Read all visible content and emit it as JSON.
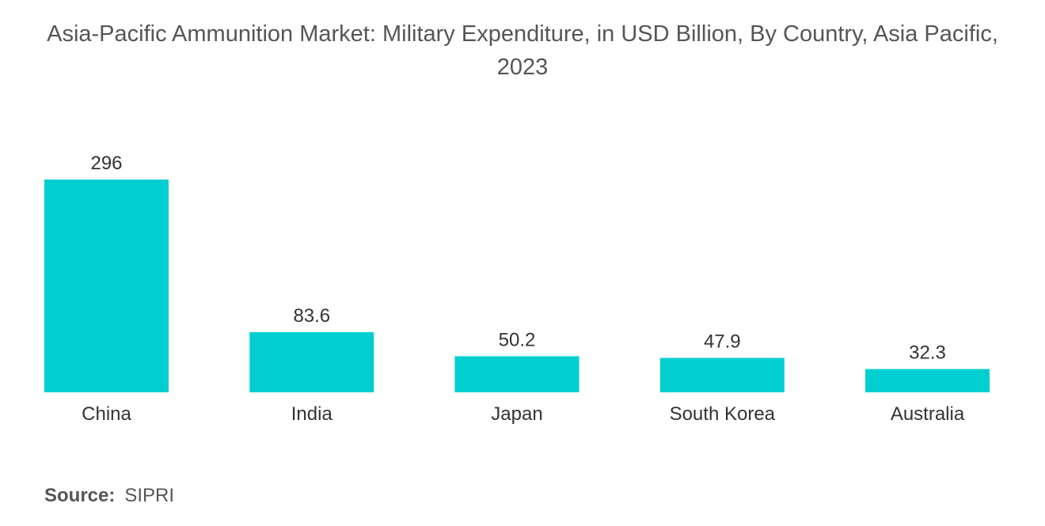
{
  "chart_data": {
    "type": "bar",
    "title": "Asia-Pacific Ammunition Market: Military Expenditure, in USD Billion, By Country, Asia Pacific, 2023",
    "categories": [
      "China",
      "India",
      "Japan",
      "South Korea",
      "Australia"
    ],
    "values": [
      296,
      83.6,
      50.2,
      47.9,
      32.3
    ],
    "value_labels": [
      "296",
      "83.6",
      "50.2",
      "47.9",
      "32.3"
    ],
    "xlabel": "",
    "ylabel": "",
    "ylim": [
      0,
      296
    ],
    "grid": false,
    "legend": "none",
    "bar_color": "#00CED1"
  },
  "source": {
    "label": "Source:",
    "value": "SIPRI"
  }
}
